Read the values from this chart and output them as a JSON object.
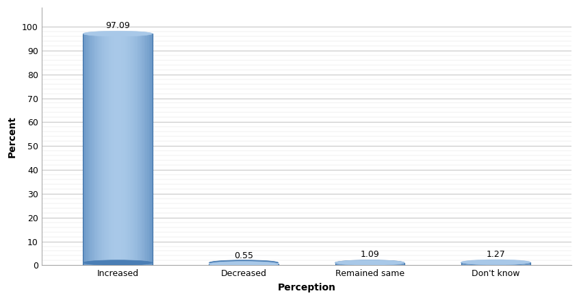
{
  "categories": [
    "Increased",
    "Decreased",
    "Remained same",
    "Don't know"
  ],
  "values": [
    97.09,
    0.55,
    1.09,
    1.27
  ],
  "bar_color_main": "#6fa8d6",
  "bar_color_light": "#a8c8e8",
  "bar_color_dark": "#4a7eb5",
  "bar_color_edge": "#3a6ea5",
  "xlabel": "Perception",
  "ylabel": "Percent",
  "ylim": [
    0,
    100
  ],
  "yticks": [
    0,
    10,
    20,
    30,
    40,
    50,
    60,
    70,
    80,
    90,
    100
  ],
  "label_fontsize": 10,
  "tick_fontsize": 9,
  "value_fontsize": 9,
  "background_color": "#ffffff",
  "grid_color": "#c0c0c0",
  "axis_color": "#aaaaaa"
}
